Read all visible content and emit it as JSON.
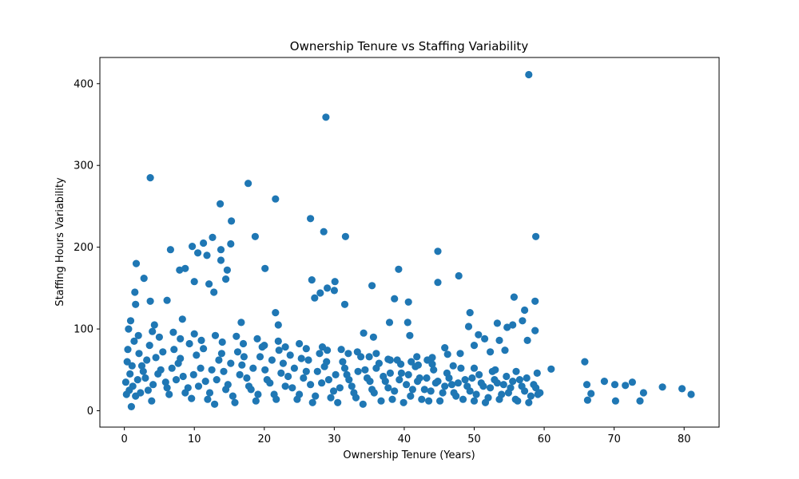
{
  "chart_data": {
    "type": "scatter",
    "title": "Ownership Tenure vs Staffing Variability",
    "xlabel": "Ownership Tenure (Years)",
    "ylabel": "Staffing Hours Variability",
    "xlim": [
      -3.5,
      85
    ],
    "ylim": [
      -20,
      432
    ],
    "xticks": [
      0,
      10,
      20,
      30,
      40,
      50,
      60,
      70,
      80
    ],
    "yticks": [
      0,
      100,
      200,
      300,
      400
    ],
    "grid": false,
    "legend": "none",
    "marker_color": "#1f77b4",
    "series": [
      {
        "points": [
          [
            57.8,
            411
          ],
          [
            28.8,
            359
          ],
          [
            3.7,
            285
          ],
          [
            17.7,
            278
          ],
          [
            21.6,
            259
          ],
          [
            13.7,
            253
          ],
          [
            26.6,
            235
          ],
          [
            15.3,
            232
          ],
          [
            28.5,
            219
          ],
          [
            31.6,
            213
          ],
          [
            18.7,
            213
          ],
          [
            58.8,
            213
          ],
          [
            12.6,
            212
          ],
          [
            11.3,
            205
          ],
          [
            15.2,
            204
          ],
          [
            9.7,
            201
          ],
          [
            6.6,
            197
          ],
          [
            13.8,
            197
          ],
          [
            44.8,
            195
          ],
          [
            10.5,
            193
          ],
          [
            11.8,
            190
          ],
          [
            13.8,
            184
          ],
          [
            1.7,
            180
          ],
          [
            20.1,
            174
          ],
          [
            39.2,
            173
          ],
          [
            8.7,
            174
          ],
          [
            7.9,
            172
          ],
          [
            14.7,
            172
          ],
          [
            47.8,
            165
          ],
          [
            14.5,
            161
          ],
          [
            2.8,
            162
          ],
          [
            10.0,
            158
          ],
          [
            26.8,
            160
          ],
          [
            30.1,
            158
          ],
          [
            12.1,
            155
          ],
          [
            44.8,
            157
          ],
          [
            35.4,
            153
          ],
          [
            29.0,
            150
          ],
          [
            30.0,
            147
          ],
          [
            28.0,
            144
          ],
          [
            1.5,
            145
          ],
          [
            12.8,
            145
          ],
          [
            55.7,
            139
          ],
          [
            40.6,
            133
          ],
          [
            27.2,
            138
          ],
          [
            38.6,
            137
          ],
          [
            57.2,
            123
          ],
          [
            58.7,
            134
          ],
          [
            49.4,
            120
          ],
          [
            21.6,
            120
          ],
          [
            8.3,
            112
          ],
          [
            50.6,
            93
          ],
          [
            31.5,
            130
          ],
          [
            6.1,
            135
          ],
          [
            3.7,
            134
          ],
          [
            1.6,
            130
          ],
          [
            53.3,
            107
          ],
          [
            55.5,
            105
          ],
          [
            56.9,
            110
          ],
          [
            40.5,
            108
          ],
          [
            37.9,
            108
          ],
          [
            40.8,
            92
          ],
          [
            49.2,
            103
          ],
          [
            54.7,
            102
          ],
          [
            58.7,
            98
          ],
          [
            0.9,
            110
          ],
          [
            0.6,
            100
          ],
          [
            4.3,
            105
          ],
          [
            16.7,
            108
          ],
          [
            22.0,
            105
          ],
          [
            34.2,
            95
          ],
          [
            35.6,
            90
          ],
          [
            51.5,
            88
          ],
          [
            53.6,
            86
          ],
          [
            57.6,
            86
          ],
          [
            50.0,
            80
          ],
          [
            45.8,
            77
          ],
          [
            44.0,
            65
          ],
          [
            46.2,
            69
          ],
          [
            52.3,
            72
          ],
          [
            54.4,
            74
          ],
          [
            43.3,
            62
          ],
          [
            48.0,
            70
          ],
          [
            41.8,
            66
          ],
          [
            42.0,
            56
          ],
          [
            39.5,
            57
          ],
          [
            37.7,
            63
          ],
          [
            36.0,
            70
          ],
          [
            33.3,
            72
          ],
          [
            31.0,
            75
          ],
          [
            28.3,
            78
          ],
          [
            25.0,
            82
          ],
          [
            22.0,
            85
          ],
          [
            19.0,
            88
          ],
          [
            16.0,
            91
          ],
          [
            13.0,
            92
          ],
          [
            10.0,
            94
          ],
          [
            7.0,
            96
          ],
          [
            4.0,
            97
          ],
          [
            2.0,
            92
          ],
          [
            5.0,
            90
          ],
          [
            8.0,
            88
          ],
          [
            11.0,
            86
          ],
          [
            14.0,
            84
          ],
          [
            17.0,
            82
          ],
          [
            20.0,
            80
          ],
          [
            23.0,
            78
          ],
          [
            26.0,
            76
          ],
          [
            29.0,
            74
          ],
          [
            32.0,
            70
          ],
          [
            35.0,
            66
          ],
          [
            38.0,
            62
          ],
          [
            41.0,
            60
          ],
          [
            44.0,
            57
          ],
          [
            47.0,
            55
          ],
          [
            50.0,
            52
          ],
          [
            53.0,
            50
          ],
          [
            56.0,
            48
          ],
          [
            59.0,
            46
          ],
          [
            61.0,
            51
          ],
          [
            65.8,
            60
          ],
          [
            66.1,
            32
          ],
          [
            66.2,
            13
          ],
          [
            66.7,
            21
          ],
          [
            68.6,
            36
          ],
          [
            70.1,
            32
          ],
          [
            70.2,
            12
          ],
          [
            71.6,
            31
          ],
          [
            72.6,
            35
          ],
          [
            73.7,
            12
          ],
          [
            74.2,
            22
          ],
          [
            76.9,
            29
          ],
          [
            79.7,
            27
          ],
          [
            81.0,
            20
          ],
          [
            0.4,
            60
          ],
          [
            0.8,
            45
          ],
          [
            1.2,
            30
          ],
          [
            1.6,
            18
          ],
          [
            2.1,
            70
          ],
          [
            2.5,
            55
          ],
          [
            3.0,
            40
          ],
          [
            3.4,
            25
          ],
          [
            3.9,
            12
          ],
          [
            4.5,
            65
          ],
          [
            5.2,
            50
          ],
          [
            5.9,
            35
          ],
          [
            6.4,
            20
          ],
          [
            7.1,
            75
          ],
          [
            7.7,
            58
          ],
          [
            8.4,
            42
          ],
          [
            9.1,
            28
          ],
          [
            9.6,
            15
          ],
          [
            10.3,
            68
          ],
          [
            10.9,
            52
          ],
          [
            11.6,
            36
          ],
          [
            12.2,
            22
          ],
          [
            12.9,
            8
          ],
          [
            13.5,
            62
          ],
          [
            14.2,
            48
          ],
          [
            14.8,
            32
          ],
          [
            15.5,
            18
          ],
          [
            16.2,
            72
          ],
          [
            16.8,
            56
          ],
          [
            17.5,
            40
          ],
          [
            18.1,
            26
          ],
          [
            18.8,
            12
          ],
          [
            19.4,
            66
          ],
          [
            20.1,
            50
          ],
          [
            20.8,
            34
          ],
          [
            21.4,
            20
          ],
          [
            22.1,
            74
          ],
          [
            22.7,
            58
          ],
          [
            23.4,
            42
          ],
          [
            24.0,
            28
          ],
          [
            24.7,
            14
          ],
          [
            25.3,
            64
          ],
          [
            26.0,
            48
          ],
          [
            26.6,
            32
          ],
          [
            27.3,
            18
          ],
          [
            27.9,
            70
          ],
          [
            28.6,
            54
          ],
          [
            29.2,
            38
          ],
          [
            29.9,
            24
          ],
          [
            30.5,
            10
          ],
          [
            31.2,
            60
          ],
          [
            31.8,
            44
          ],
          [
            32.5,
            30
          ],
          [
            33.1,
            16
          ],
          [
            33.8,
            66
          ],
          [
            34.4,
            50
          ],
          [
            35.1,
            36
          ],
          [
            35.7,
            22
          ],
          [
            36.4,
            58
          ],
          [
            37.0,
            42
          ],
          [
            37.7,
            28
          ],
          [
            38.3,
            14
          ],
          [
            39.0,
            62
          ],
          [
            39.6,
            46
          ],
          [
            40.3,
            32
          ],
          [
            40.9,
            18
          ],
          [
            41.6,
            54
          ],
          [
            42.2,
            40
          ],
          [
            42.9,
            26
          ],
          [
            43.5,
            12
          ],
          [
            44.2,
            50
          ],
          [
            44.8,
            36
          ],
          [
            45.5,
            22
          ],
          [
            46.1,
            46
          ],
          [
            46.8,
            32
          ],
          [
            47.4,
            18
          ],
          [
            48.1,
            52
          ],
          [
            48.7,
            38
          ],
          [
            49.4,
            24
          ],
          [
            50.0,
            12
          ],
          [
            50.7,
            44
          ],
          [
            51.3,
            30
          ],
          [
            52.0,
            16
          ],
          [
            52.6,
            48
          ],
          [
            53.3,
            34
          ],
          [
            53.9,
            20
          ],
          [
            54.6,
            42
          ],
          [
            55.2,
            28
          ],
          [
            55.9,
            14
          ],
          [
            56.5,
            38
          ],
          [
            57.2,
            24
          ],
          [
            57.8,
            10
          ],
          [
            58.5,
            32
          ],
          [
            59.1,
            20
          ],
          [
            0.2,
            35
          ],
          [
            0.3,
            20
          ],
          [
            0.5,
            75
          ],
          [
            0.7,
            25
          ],
          [
            1.0,
            5
          ],
          [
            1.1,
            55
          ],
          [
            1.4,
            85
          ],
          [
            1.9,
            38
          ],
          [
            2.3,
            22
          ],
          [
            2.7,
            48
          ],
          [
            3.2,
            62
          ],
          [
            3.6,
            80
          ],
          [
            4.1,
            32
          ],
          [
            4.8,
            45
          ],
          [
            5.5,
            72
          ],
          [
            6.1,
            28
          ],
          [
            6.8,
            52
          ],
          [
            7.4,
            38
          ],
          [
            8.0,
            64
          ],
          [
            8.7,
            22
          ],
          [
            9.3,
            82
          ],
          [
            9.9,
            44
          ],
          [
            10.6,
            30
          ],
          [
            11.3,
            76
          ],
          [
            11.9,
            14
          ],
          [
            12.5,
            50
          ],
          [
            13.2,
            38
          ],
          [
            13.9,
            70
          ],
          [
            14.5,
            26
          ],
          [
            15.2,
            58
          ],
          [
            15.8,
            10
          ],
          [
            16.5,
            44
          ],
          [
            17.1,
            66
          ],
          [
            17.8,
            30
          ],
          [
            18.4,
            52
          ],
          [
            19.1,
            20
          ],
          [
            19.7,
            78
          ],
          [
            20.4,
            38
          ],
          [
            21.1,
            62
          ],
          [
            21.7,
            14
          ],
          [
            22.4,
            46
          ],
          [
            23.0,
            30
          ],
          [
            23.7,
            68
          ],
          [
            24.3,
            52
          ],
          [
            25.0,
            20
          ],
          [
            25.6,
            40
          ],
          [
            26.3,
            62
          ],
          [
            26.9,
            10
          ],
          [
            27.6,
            48
          ],
          [
            28.2,
            34
          ],
          [
            28.9,
            60
          ],
          [
            29.5,
            16
          ],
          [
            30.2,
            44
          ],
          [
            30.8,
            28
          ],
          [
            31.5,
            52
          ],
          [
            32.1,
            38
          ],
          [
            32.8,
            22
          ],
          [
            33.4,
            48
          ],
          [
            34.1,
            8
          ],
          [
            34.7,
            40
          ],
          [
            35.4,
            26
          ],
          [
            36.0,
            52
          ],
          [
            36.7,
            12
          ],
          [
            37.3,
            36
          ],
          [
            38.0,
            46
          ],
          [
            38.6,
            24
          ],
          [
            39.3,
            38
          ],
          [
            39.9,
            10
          ],
          [
            40.6,
            44
          ],
          [
            41.2,
            26
          ],
          [
            41.9,
            36
          ],
          [
            42.5,
            14
          ],
          [
            43.2,
            40
          ],
          [
            43.8,
            24
          ],
          [
            44.5,
            34
          ],
          [
            45.1,
            12
          ],
          [
            45.8,
            30
          ],
          [
            46.4,
            40
          ],
          [
            47.1,
            22
          ],
          [
            47.7,
            34
          ],
          [
            48.4,
            14
          ],
          [
            49.0,
            30
          ],
          [
            49.7,
            40
          ],
          [
            50.3,
            20
          ],
          [
            51.0,
            34
          ],
          [
            51.6,
            10
          ],
          [
            52.3,
            28
          ],
          [
            52.9,
            38
          ],
          [
            53.6,
            14
          ],
          [
            54.2,
            32
          ],
          [
            54.9,
            22
          ],
          [
            55.5,
            36
          ],
          [
            56.2,
            12
          ],
          [
            56.8,
            30
          ],
          [
            57.5,
            40
          ],
          [
            58.1,
            18
          ],
          [
            58.8,
            28
          ],
          [
            59.4,
            22
          ]
        ]
      }
    ]
  }
}
